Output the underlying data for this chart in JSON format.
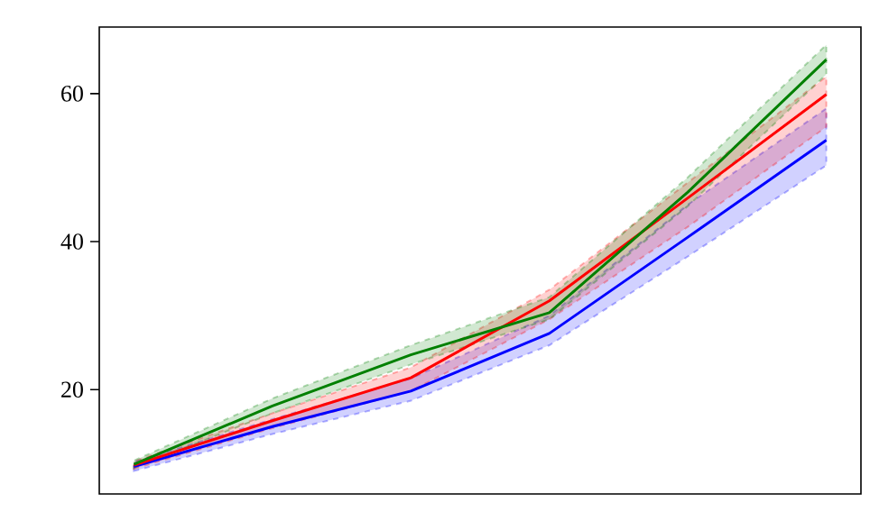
{
  "chart_data": {
    "type": "line",
    "categories": [
      null,
      null,
      null,
      null,
      null,
      null
    ],
    "ylim": [
      5.9,
      69
    ],
    "yticks": [
      20,
      40,
      60
    ],
    "grid": false,
    "line_style": "solid",
    "series": [
      {
        "color": "#0000ff",
        "values": [
          9.6,
          15.0,
          19.8,
          27.6,
          40.6,
          53.7
        ],
        "lower": [
          9.0,
          14.0,
          18.5,
          26.0,
          38.0,
          50.3
        ],
        "upper": [
          10.2,
          16.0,
          21.5,
          30.0,
          45.0,
          58.0
        ]
      },
      {
        "color": "#ff0000",
        "values": [
          9.8,
          15.8,
          21.6,
          32.0,
          45.9,
          59.9
        ],
        "lower": [
          9.3,
          14.8,
          19.8,
          29.5,
          42.0,
          55.5
        ],
        "upper": [
          10.3,
          16.8,
          23.0,
          33.5,
          48.0,
          62.3
        ]
      },
      {
        "color": "#008000",
        "values": [
          9.9,
          17.8,
          24.7,
          30.4,
          46.7,
          64.6
        ],
        "lower": [
          9.4,
          16.8,
          23.4,
          29.5,
          44.8,
          62.6
        ],
        "upper": [
          10.4,
          18.8,
          26.0,
          32.5,
          48.7,
          66.6
        ]
      }
    ]
  }
}
